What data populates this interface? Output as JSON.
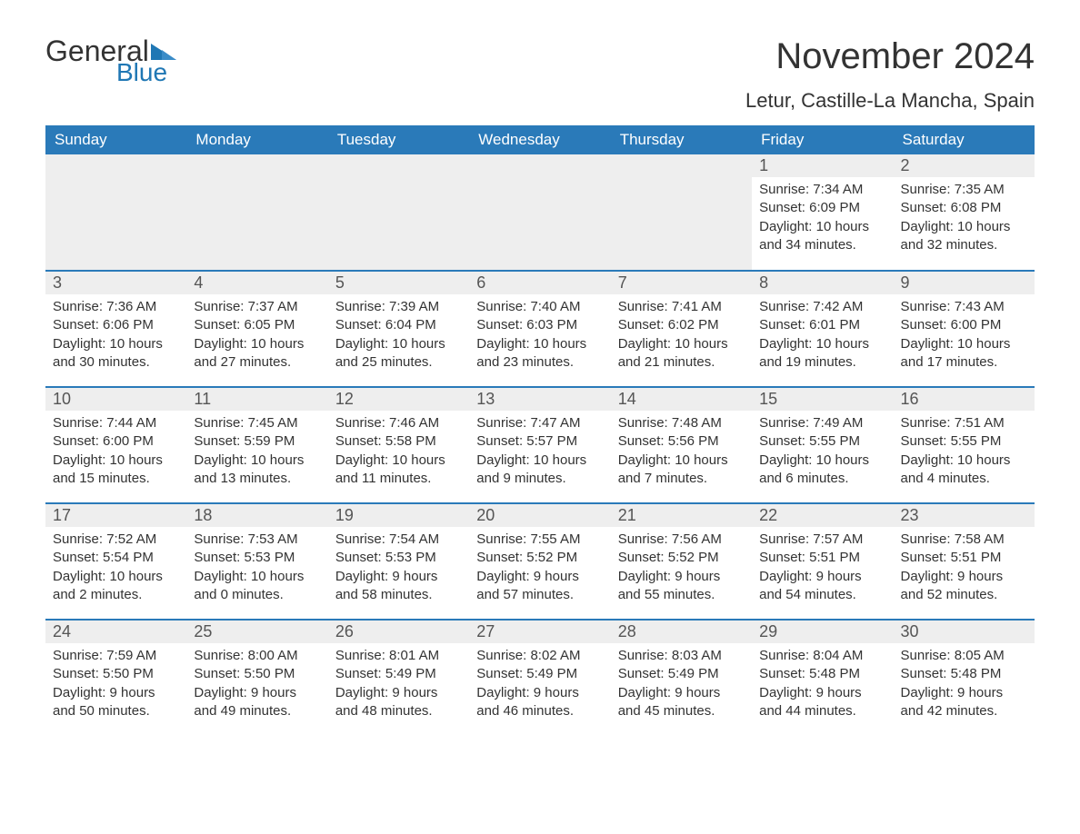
{
  "logo": {
    "general": "General",
    "blue": "Blue"
  },
  "title": "November 2024",
  "subtitle": "Letur, Castille-La Mancha, Spain",
  "colors": {
    "header_bg": "#2a7ab9",
    "header_text": "#ffffff",
    "daynum_bg": "#eeeeee",
    "row_divider": "#2a7ab9",
    "body_text": "#333333",
    "logo_blue": "#1f77b4"
  },
  "typography": {
    "title_fontsize": 40,
    "subtitle_fontsize": 22,
    "header_fontsize": 17,
    "daynum_fontsize": 18,
    "content_fontsize": 15,
    "font_family": "Arial"
  },
  "weekdays": [
    "Sunday",
    "Monday",
    "Tuesday",
    "Wednesday",
    "Thursday",
    "Friday",
    "Saturday"
  ],
  "weeks": [
    [
      null,
      null,
      null,
      null,
      null,
      {
        "n": "1",
        "sunrise": "7:34 AM",
        "sunset": "6:09 PM",
        "dl_h": "10",
        "dl_m": "34"
      },
      {
        "n": "2",
        "sunrise": "7:35 AM",
        "sunset": "6:08 PM",
        "dl_h": "10",
        "dl_m": "32"
      }
    ],
    [
      {
        "n": "3",
        "sunrise": "7:36 AM",
        "sunset": "6:06 PM",
        "dl_h": "10",
        "dl_m": "30"
      },
      {
        "n": "4",
        "sunrise": "7:37 AM",
        "sunset": "6:05 PM",
        "dl_h": "10",
        "dl_m": "27"
      },
      {
        "n": "5",
        "sunrise": "7:39 AM",
        "sunset": "6:04 PM",
        "dl_h": "10",
        "dl_m": "25"
      },
      {
        "n": "6",
        "sunrise": "7:40 AM",
        "sunset": "6:03 PM",
        "dl_h": "10",
        "dl_m": "23"
      },
      {
        "n": "7",
        "sunrise": "7:41 AM",
        "sunset": "6:02 PM",
        "dl_h": "10",
        "dl_m": "21"
      },
      {
        "n": "8",
        "sunrise": "7:42 AM",
        "sunset": "6:01 PM",
        "dl_h": "10",
        "dl_m": "19"
      },
      {
        "n": "9",
        "sunrise": "7:43 AM",
        "sunset": "6:00 PM",
        "dl_h": "10",
        "dl_m": "17"
      }
    ],
    [
      {
        "n": "10",
        "sunrise": "7:44 AM",
        "sunset": "6:00 PM",
        "dl_h": "10",
        "dl_m": "15"
      },
      {
        "n": "11",
        "sunrise": "7:45 AM",
        "sunset": "5:59 PM",
        "dl_h": "10",
        "dl_m": "13"
      },
      {
        "n": "12",
        "sunrise": "7:46 AM",
        "sunset": "5:58 PM",
        "dl_h": "10",
        "dl_m": "11"
      },
      {
        "n": "13",
        "sunrise": "7:47 AM",
        "sunset": "5:57 PM",
        "dl_h": "10",
        "dl_m": "9"
      },
      {
        "n": "14",
        "sunrise": "7:48 AM",
        "sunset": "5:56 PM",
        "dl_h": "10",
        "dl_m": "7"
      },
      {
        "n": "15",
        "sunrise": "7:49 AM",
        "sunset": "5:55 PM",
        "dl_h": "10",
        "dl_m": "6"
      },
      {
        "n": "16",
        "sunrise": "7:51 AM",
        "sunset": "5:55 PM",
        "dl_h": "10",
        "dl_m": "4"
      }
    ],
    [
      {
        "n": "17",
        "sunrise": "7:52 AM",
        "sunset": "5:54 PM",
        "dl_h": "10",
        "dl_m": "2"
      },
      {
        "n": "18",
        "sunrise": "7:53 AM",
        "sunset": "5:53 PM",
        "dl_h": "10",
        "dl_m": "0"
      },
      {
        "n": "19",
        "sunrise": "7:54 AM",
        "sunset": "5:53 PM",
        "dl_h": "9",
        "dl_m": "58"
      },
      {
        "n": "20",
        "sunrise": "7:55 AM",
        "sunset": "5:52 PM",
        "dl_h": "9",
        "dl_m": "57"
      },
      {
        "n": "21",
        "sunrise": "7:56 AM",
        "sunset": "5:52 PM",
        "dl_h": "9",
        "dl_m": "55"
      },
      {
        "n": "22",
        "sunrise": "7:57 AM",
        "sunset": "5:51 PM",
        "dl_h": "9",
        "dl_m": "54"
      },
      {
        "n": "23",
        "sunrise": "7:58 AM",
        "sunset": "5:51 PM",
        "dl_h": "9",
        "dl_m": "52"
      }
    ],
    [
      {
        "n": "24",
        "sunrise": "7:59 AM",
        "sunset": "5:50 PM",
        "dl_h": "9",
        "dl_m": "50"
      },
      {
        "n": "25",
        "sunrise": "8:00 AM",
        "sunset": "5:50 PM",
        "dl_h": "9",
        "dl_m": "49"
      },
      {
        "n": "26",
        "sunrise": "8:01 AM",
        "sunset": "5:49 PM",
        "dl_h": "9",
        "dl_m": "48"
      },
      {
        "n": "27",
        "sunrise": "8:02 AM",
        "sunset": "5:49 PM",
        "dl_h": "9",
        "dl_m": "46"
      },
      {
        "n": "28",
        "sunrise": "8:03 AM",
        "sunset": "5:49 PM",
        "dl_h": "9",
        "dl_m": "45"
      },
      {
        "n": "29",
        "sunrise": "8:04 AM",
        "sunset": "5:48 PM",
        "dl_h": "9",
        "dl_m": "44"
      },
      {
        "n": "30",
        "sunrise": "8:05 AM",
        "sunset": "5:48 PM",
        "dl_h": "9",
        "dl_m": "42"
      }
    ]
  ],
  "labels": {
    "sunrise": "Sunrise: ",
    "sunset": "Sunset: ",
    "daylight_pre": "Daylight: ",
    "hours_word": " hours",
    "and_word": "and ",
    "minutes_word": " minutes."
  }
}
